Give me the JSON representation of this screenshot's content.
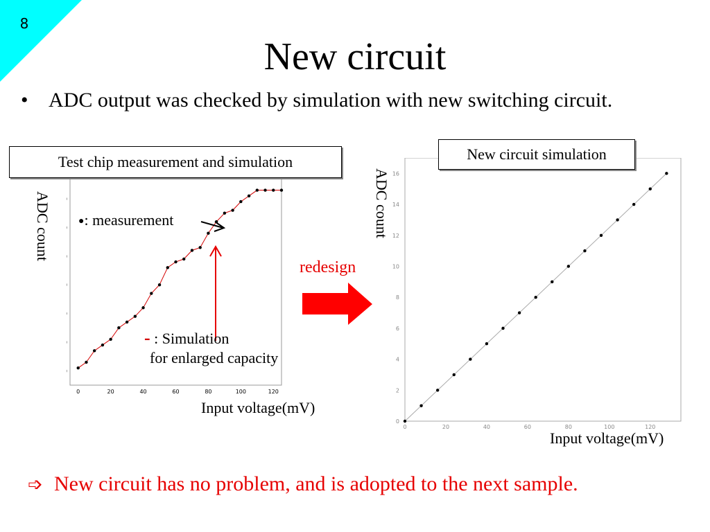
{
  "slide": {
    "page_number": "8",
    "title": "New circuit",
    "bullet": "ADC output was checked by simulation with new switching circuit.",
    "conclusion": "New circuit has no problem, and is adopted to the next sample.",
    "colors": {
      "corner": "#00ffff",
      "accent_red": "#e60000"
    }
  },
  "left_panel": {
    "box_label": "Test chip measurement and  simulation",
    "ylabel": "ADC count",
    "xlabel": "Input voltage(mV)",
    "measurement_legend": ": measurement",
    "simulation_legend": ": Simulation",
    "simulation_legend_line2": "for enlarged capacity"
  },
  "middle": {
    "redesign_label": "redesign"
  },
  "right_panel": {
    "box_label": "New circuit simulation",
    "ylabel": "ADC count",
    "xlabel": "Input voltage(mV)"
  },
  "chart_data": [
    {
      "type": "scatter",
      "xlabel": "Input voltage(mV)",
      "ylabel": "ADC count",
      "xlim": [
        -5,
        125
      ],
      "ylim": [
        -5,
        67
      ],
      "xticks": [
        0,
        20,
        40,
        60,
        80,
        100,
        120
      ],
      "yticks": [
        0,
        10,
        20,
        30,
        40,
        50,
        60
      ],
      "series": [
        {
          "name": "measurement",
          "style": "points",
          "x": [
            0,
            5,
            10,
            15,
            20,
            25,
            30,
            35,
            40,
            45,
            50,
            55,
            60,
            65,
            70,
            75,
            80,
            85,
            90,
            95,
            100,
            105,
            110,
            115,
            120,
            125
          ],
          "y": [
            1,
            3,
            7,
            9,
            11,
            15,
            17,
            19,
            22,
            27,
            30,
            36,
            38,
            39,
            42,
            43,
            48,
            52,
            55,
            56,
            59,
            61,
            63,
            63,
            63,
            63
          ]
        },
        {
          "name": "Simulation",
          "style": "line",
          "x": [
            0,
            5,
            10,
            15,
            20,
            25,
            30,
            35,
            40,
            45,
            50,
            55,
            60,
            65,
            70,
            75,
            80,
            85,
            90,
            95,
            100,
            105,
            110,
            115,
            120,
            125
          ],
          "y": [
            1,
            3,
            7,
            9,
            11,
            15,
            17,
            19,
            22,
            27,
            30,
            36,
            38,
            39,
            42,
            43,
            48,
            52,
            55,
            56,
            59,
            61,
            63,
            63,
            63,
            63
          ]
        }
      ]
    },
    {
      "type": "scatter",
      "xlabel": "Input voltage(mV)",
      "ylabel": "ADC count",
      "xlim": [
        0,
        135
      ],
      "ylim": [
        0,
        17
      ],
      "xticks": [
        0,
        20,
        40,
        60,
        80,
        100,
        120
      ],
      "yticks": [
        0,
        2,
        4,
        6,
        8,
        10,
        12,
        14,
        16
      ],
      "series": [
        {
          "name": "new circuit simulation",
          "x": [
            0,
            8,
            16,
            24,
            32,
            40,
            48,
            56,
            64,
            72,
            80,
            88,
            96,
            104,
            112,
            120,
            128
          ],
          "y": [
            0,
            1,
            2,
            3,
            4,
            5,
            6,
            7,
            8,
            9,
            10,
            11,
            12,
            13,
            14,
            15,
            16
          ]
        }
      ]
    }
  ]
}
